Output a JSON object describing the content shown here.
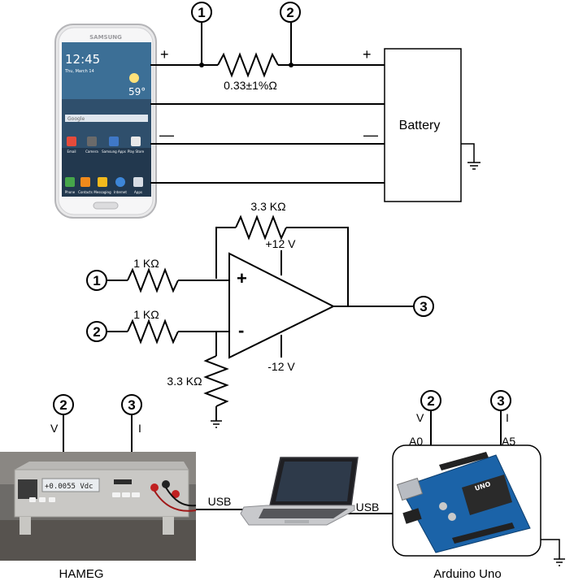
{
  "nodes": {
    "n1": "1",
    "n2": "2",
    "n3": "3"
  },
  "phone": {
    "brand": "SAMSUNG",
    "time": "12:45",
    "date": "Thu, March 14",
    "temp": "59°",
    "search": "Google",
    "apps_row1": [
      "Email",
      "Camera",
      "Samsung Apps",
      "Play Store"
    ],
    "apps_row2": [
      "Phone",
      "Contacts",
      "Messaging",
      "Internet",
      "Apps"
    ]
  },
  "shunt": {
    "label": "0.33±1%Ω"
  },
  "battery": {
    "label": "Battery",
    "plus": "+",
    "minus": "—"
  },
  "phone_terminals": {
    "plus": "+",
    "minus": "—"
  },
  "amplifier": {
    "feedback_resistor": "3.3 KΩ",
    "input1_resistor": "1 KΩ",
    "input2_resistor": "1 KΩ",
    "ground_resistor": "3.3 KΩ",
    "v_pos": "+12 V",
    "v_neg": "-12 V",
    "plus_sign": "+",
    "minus_sign": "-"
  },
  "hameg": {
    "label": "HAMEG",
    "display": "+0.0055  Vdc",
    "input_v": "V",
    "input_i": "I",
    "usb": "USB"
  },
  "arduino": {
    "label": "Arduino Uno",
    "input_v": "V",
    "input_i": "I",
    "pin_a0": "A0",
    "pin_a5": "A5",
    "usb": "USB",
    "board_text": "UNO"
  }
}
